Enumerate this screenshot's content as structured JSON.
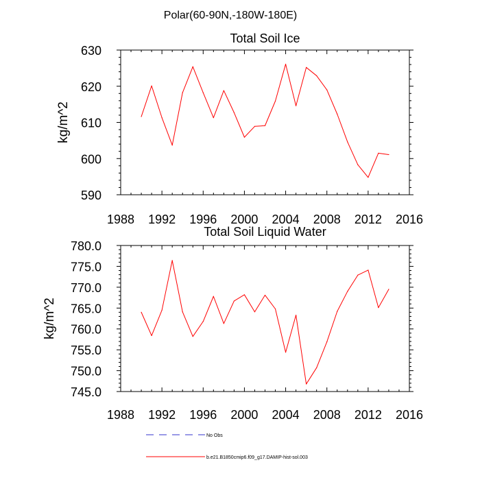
{
  "page_title": "Polar(60-90N,-180W-180E)",
  "colors": {
    "model_line": "#ff0000",
    "obs_line": "#3333cc",
    "axis": "#000000"
  },
  "legend": {
    "items": [
      {
        "label": "No Obs",
        "style": "dashed",
        "color": "#3333cc"
      },
      {
        "label": "b.e21.B1850cmip6.f09_g17.DAMIP-hist-sol.003",
        "style": "solid",
        "color": "#ff0000"
      }
    ]
  },
  "chart_data": [
    {
      "type": "line",
      "title": "Total Soil Ice",
      "xlabel": "",
      "ylabel": "kg/m^2",
      "xlim": [
        1988,
        2016
      ],
      "ylim": [
        590,
        630
      ],
      "xticks": [
        1988,
        1992,
        1996,
        2000,
        2004,
        2008,
        2012,
        2016
      ],
      "xtick_labels": [
        "1988",
        "1992",
        "1996",
        "2000",
        "2004",
        "2008",
        "2012",
        "2016"
      ],
      "yticks": [
        590,
        600,
        610,
        620,
        630
      ],
      "ytick_labels": [
        "590",
        "600",
        "610",
        "620",
        "630"
      ],
      "grid": false,
      "x": [
        1990,
        1991,
        1992,
        1993,
        1994,
        1995,
        1996,
        1997,
        1998,
        1999,
        2000,
        2001,
        2002,
        2003,
        2004,
        2005,
        2006,
        2007,
        2008,
        2009,
        2010,
        2011,
        2012,
        2013,
        2014
      ],
      "series": [
        {
          "name": "b.e21.B1850cmip6.f09_g17.DAMIP-hist-sol.003",
          "color": "#ff0000",
          "values": [
            611.6,
            620.1,
            611.3,
            603.7,
            618.2,
            625.4,
            618.2,
            611.3,
            618.8,
            612.7,
            605.9,
            608.9,
            609.1,
            615.9,
            626.1,
            614.6,
            625.2,
            622.9,
            619.0,
            612.3,
            604.6,
            598.3,
            594.8,
            601.5,
            601.1
          ]
        }
      ]
    },
    {
      "type": "line",
      "title": "Total Soil Liquid Water",
      "xlabel": "",
      "ylabel": "kg/m^2",
      "xlim": [
        1988,
        2016
      ],
      "ylim": [
        745.0,
        780.0
      ],
      "xticks": [
        1988,
        1992,
        1996,
        2000,
        2004,
        2008,
        2012,
        2016
      ],
      "xtick_labels": [
        "1988",
        "1992",
        "1996",
        "2000",
        "2004",
        "2008",
        "2012",
        "2016"
      ],
      "yticks": [
        745,
        750,
        755,
        760,
        765,
        770,
        775,
        780
      ],
      "ytick_labels": [
        "745.0",
        "750.0",
        "755.0",
        "760.0",
        "765.0",
        "770.0",
        "775.0",
        "780.0"
      ],
      "grid": false,
      "x": [
        1990,
        1991,
        1992,
        1993,
        1994,
        1995,
        1996,
        1997,
        1998,
        1999,
        2000,
        2001,
        2002,
        2003,
        2004,
        2005,
        2006,
        2007,
        2008,
        2009,
        2010,
        2011,
        2012,
        2013,
        2014
      ],
      "series": [
        {
          "name": "b.e21.B1850cmip6.f09_g17.DAMIP-hist-sol.003",
          "color": "#ff0000",
          "values": [
            764.0,
            758.4,
            764.5,
            776.4,
            764.1,
            758.2,
            761.8,
            767.8,
            761.3,
            766.7,
            768.2,
            764.1,
            768.1,
            764.8,
            754.4,
            763.3,
            746.8,
            750.7,
            756.9,
            764.2,
            769.0,
            772.9,
            774.1,
            765.1,
            769.5
          ]
        }
      ]
    }
  ]
}
